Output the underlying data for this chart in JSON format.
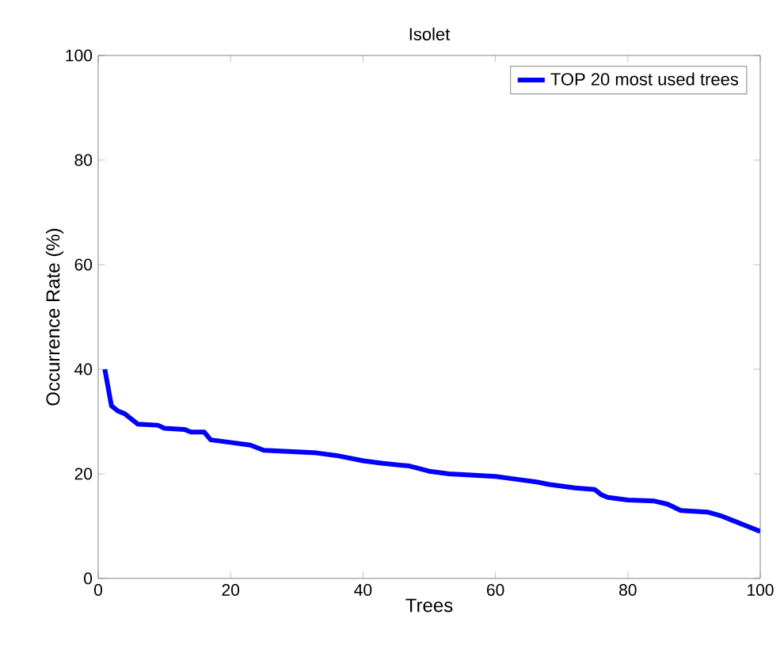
{
  "chart_data": {
    "type": "line",
    "title": "Isolet",
    "xlabel": "Trees",
    "ylabel": "Occurrence Rate (%)",
    "x": [
      1,
      2,
      3,
      4,
      5,
      6,
      9,
      10,
      13,
      14,
      16,
      17,
      20,
      23,
      25,
      30,
      33,
      36,
      40,
      43,
      47,
      50,
      53,
      60,
      63,
      66,
      68,
      72,
      75,
      76,
      77,
      80,
      84,
      86,
      88,
      92,
      94,
      96,
      98,
      100
    ],
    "series": [
      {
        "name": "TOP 20 most used trees",
        "color": "#0000ff",
        "values": [
          40,
          33,
          32,
          31.5,
          30.5,
          29.5,
          29.3,
          28.7,
          28.5,
          28,
          28,
          26.5,
          26,
          25.5,
          24.5,
          24.2,
          24,
          23.5,
          22.5,
          22,
          21.5,
          20.5,
          20,
          19.5,
          19,
          18.5,
          18,
          17.3,
          17,
          16,
          15.5,
          15,
          14.8,
          14.2,
          13,
          12.7,
          12,
          11,
          10,
          9
        ]
      }
    ],
    "xlim": [
      0,
      100
    ],
    "ylim": [
      0,
      100
    ],
    "xticks": [
      0,
      20,
      40,
      60,
      80,
      100
    ],
    "yticks": [
      0,
      20,
      40,
      60,
      80,
      100
    ],
    "legend": "top right",
    "line_style": "solid"
  }
}
